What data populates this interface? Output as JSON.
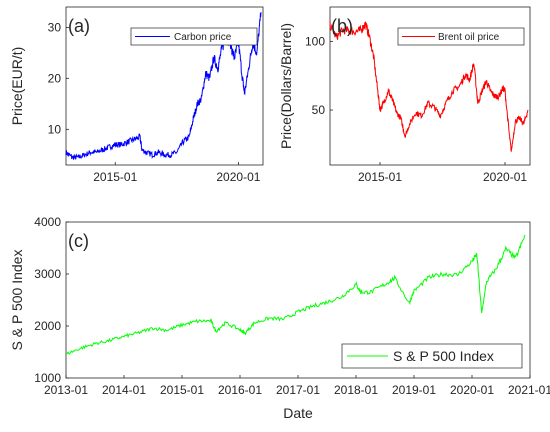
{
  "chart_data": [
    {
      "type": "line",
      "panel_label": "(a)",
      "ylabel": "Price(EUR/t)",
      "legend": "Carbon price",
      "legend_position": "top-right",
      "color": "#0000ff",
      "xlim": [
        "2013-01-01",
        "2020-12-31"
      ],
      "ylim": [
        3,
        34
      ],
      "xticks": [
        "2015-01",
        "2020-01"
      ],
      "yticks": [
        10,
        20,
        30
      ],
      "series": [
        {
          "x": [
            "2013-01",
            "2013-04",
            "2013-07",
            "2013-10",
            "2014-01",
            "2014-04",
            "2014-07",
            "2014-10",
            "2015-01",
            "2015-04",
            "2015-07",
            "2015-10",
            "2016-01",
            "2016-02",
            "2016-04",
            "2016-07",
            "2016-10",
            "2017-01",
            "2017-04",
            "2017-07",
            "2017-10",
            "2018-01",
            "2018-03",
            "2018-05",
            "2018-07",
            "2018-09",
            "2018-11",
            "2019-01",
            "2019-03",
            "2019-05",
            "2019-07",
            "2019-09",
            "2019-11",
            "2020-01",
            "2020-03",
            "2020-04",
            "2020-06",
            "2020-08",
            "2020-10",
            "2020-12"
          ],
          "y": [
            5.5,
            4.5,
            4.5,
            5.0,
            5.5,
            5.5,
            6.0,
            6.5,
            7.0,
            7.0,
            7.5,
            8.0,
            8.5,
            6.0,
            5.5,
            5.0,
            5.5,
            5.0,
            5.0,
            5.5,
            7.5,
            8.5,
            12.0,
            15.0,
            16.0,
            21.0,
            20.0,
            24.0,
            22.0,
            26.0,
            28.0,
            27.0,
            24.0,
            27.0,
            20.0,
            17.0,
            22.0,
            27.0,
            25.0,
            33.0
          ]
        }
      ]
    },
    {
      "type": "line",
      "panel_label": "(b)",
      "ylabel": "Price(Dollars/Barrel)",
      "legend": "Brent oil price",
      "legend_position": "top-right",
      "color": "#ff0000",
      "xlim": [
        "2013-01-01",
        "2020-12-31"
      ],
      "ylim": [
        10,
        125
      ],
      "xticks": [
        "2015-01",
        "2020-01"
      ],
      "yticks": [
        50,
        100
      ],
      "series": [
        {
          "x": [
            "2013-01",
            "2013-04",
            "2013-07",
            "2013-10",
            "2014-01",
            "2014-04",
            "2014-06",
            "2014-08",
            "2014-10",
            "2014-12",
            "2015-01",
            "2015-03",
            "2015-05",
            "2015-07",
            "2015-09",
            "2015-11",
            "2016-01",
            "2016-03",
            "2016-06",
            "2016-09",
            "2016-12",
            "2017-03",
            "2017-06",
            "2017-09",
            "2017-12",
            "2018-03",
            "2018-06",
            "2018-08",
            "2018-10",
            "2018-12",
            "2019-02",
            "2019-04",
            "2019-06",
            "2019-08",
            "2019-10",
            "2019-12",
            "2020-01",
            "2020-03",
            "2020-04",
            "2020-06",
            "2020-08",
            "2020-10",
            "2020-12"
          ],
          "y": [
            112,
            103,
            108,
            108,
            107,
            108,
            113,
            103,
            88,
            63,
            50,
            56,
            64,
            57,
            48,
            44,
            31,
            39,
            48,
            46,
            55,
            52,
            46,
            56,
            64,
            67,
            76,
            72,
            84,
            55,
            64,
            71,
            64,
            60,
            60,
            66,
            64,
            33,
            20,
            42,
            44,
            40,
            50
          ]
        }
      ]
    },
    {
      "type": "line",
      "panel_label": "(c)",
      "xlabel": "Date",
      "ylabel": "S & P 500 Index",
      "legend": "S & P 500 Index",
      "legend_position": "bottom-right",
      "color": "#00ff00",
      "xlim": [
        "2013-01-01",
        "2021-01-01"
      ],
      "ylim": [
        1000,
        4000
      ],
      "xticks": [
        "2013-01",
        "2014-01",
        "2015-01",
        "2016-01",
        "2017-01",
        "2018-01",
        "2019-01",
        "2020-01",
        "2021-01"
      ],
      "yticks": [
        1000,
        2000,
        3000,
        4000
      ],
      "series": [
        {
          "x": [
            "2013-01",
            "2013-04",
            "2013-07",
            "2013-10",
            "2014-01",
            "2014-04",
            "2014-07",
            "2014-10",
            "2015-01",
            "2015-04",
            "2015-07",
            "2015-08",
            "2015-10",
            "2016-01",
            "2016-02",
            "2016-04",
            "2016-07",
            "2016-10",
            "2017-01",
            "2017-04",
            "2017-07",
            "2017-10",
            "2018-01",
            "2018-02",
            "2018-04",
            "2018-07",
            "2018-09",
            "2018-12",
            "2019-01",
            "2019-04",
            "2019-07",
            "2019-10",
            "2020-01",
            "2020-02",
            "2020-03",
            "2020-04",
            "2020-06",
            "2020-08",
            "2020-10",
            "2020-12"
          ],
          "y": [
            1460,
            1570,
            1660,
            1720,
            1800,
            1870,
            1960,
            1920,
            2020,
            2090,
            2100,
            1900,
            2060,
            1930,
            1860,
            2060,
            2150,
            2130,
            2270,
            2380,
            2460,
            2560,
            2800,
            2650,
            2650,
            2800,
            2920,
            2440,
            2670,
            2930,
            3000,
            2980,
            3240,
            3380,
            2240,
            2850,
            3100,
            3480,
            3300,
            3750
          ]
        }
      ]
    }
  ]
}
